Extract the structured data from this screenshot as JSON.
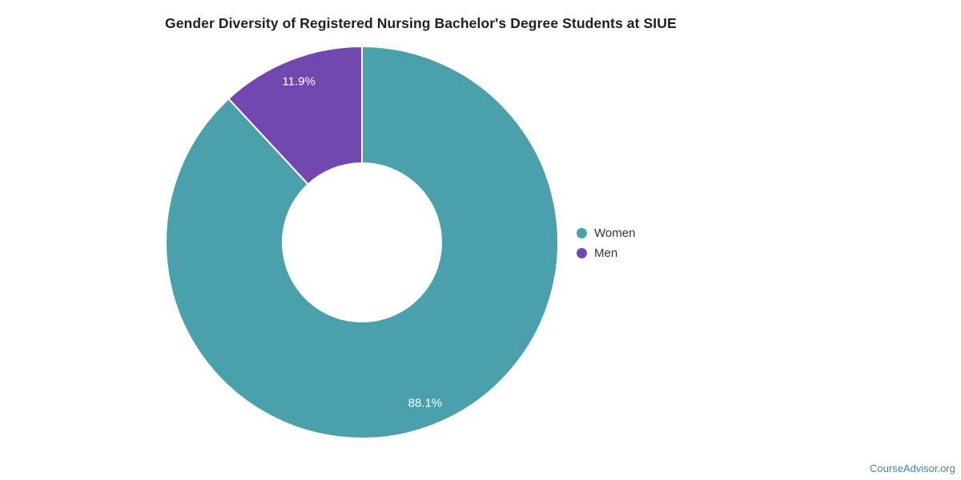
{
  "title": "Gender Diversity of Registered Nursing Bachelor's Degree Students at SIUE",
  "legend": {
    "items": [
      {
        "label": "Women",
        "color": "#4AA1AC"
      },
      {
        "label": "Men",
        "color": "#7347B2"
      }
    ]
  },
  "footer": {
    "link_label": "CourseAdvisor.org",
    "link_color": "#4187AE"
  },
  "chart_data": {
    "type": "pie",
    "subtype": "donut",
    "title": "Gender Diversity of Registered Nursing Bachelor's Degree Students at SIUE",
    "categories": [
      "Women",
      "Men"
    ],
    "values": [
      88.1,
      11.9
    ],
    "labels": [
      "88.1%",
      "11.9%"
    ],
    "colors": [
      "#4AA1AC",
      "#7347B2"
    ],
    "label_color": "#ffffff",
    "separator_color": "#ffffff",
    "start_angle_deg": 0,
    "direction": "clockwise",
    "legend_position": "right",
    "background": "#ffffff"
  }
}
